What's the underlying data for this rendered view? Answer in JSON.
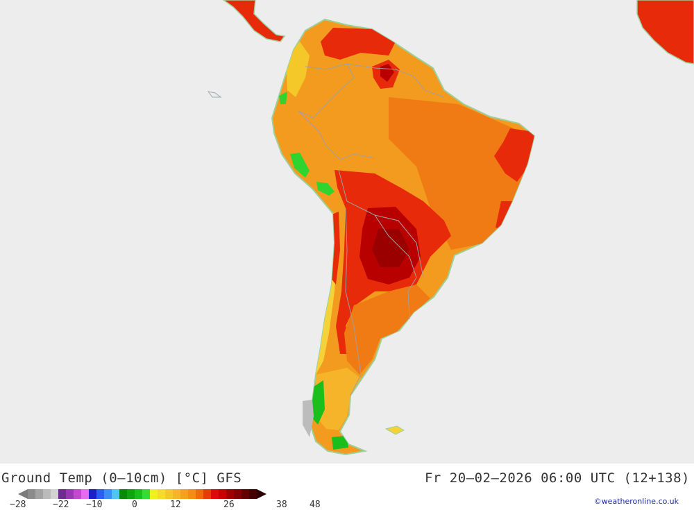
{
  "title": "Ground Temp (0–10cm) [°C] GFS",
  "datetime": "Fr 20–02–2026 06:00 UTC (12+138)",
  "credit": "©weatheronline.co.uk",
  "legend": {
    "ticks": [
      "−28",
      "−22",
      "−10",
      "0",
      "12",
      "26",
      "38",
      "48"
    ],
    "colors": [
      "#8c8c8c",
      "#a3a3a3",
      "#bbbbbb",
      "#d2d2d2",
      "#6e2d8e",
      "#9a38b4",
      "#c447cf",
      "#e86bef",
      "#1e1ec8",
      "#2b5ef0",
      "#3a8ef5",
      "#4ec5f5",
      "#0a8a0a",
      "#0ea40e",
      "#1bbf1b",
      "#34dc34",
      "#f0f01e",
      "#f5dc2a",
      "#f5c82a",
      "#f5b42a",
      "#f5a01e",
      "#f58c14",
      "#f06a0a",
      "#e63c0a",
      "#dc0a0a",
      "#c80000",
      "#a00000",
      "#820000",
      "#640000",
      "#460000"
    ]
  },
  "map": {
    "region": "South America",
    "colors": {
      "ocean": "#ededed",
      "warm": "#f39b1e",
      "warm_dark": "#f07a14",
      "hot": "#e62a0a",
      "very_hot": "#b80000",
      "mild": "#f5c832",
      "cool_green": "#2fd42f",
      "cold_grey": "#a8a8a8",
      "border": "#a0a0a0"
    }
  }
}
